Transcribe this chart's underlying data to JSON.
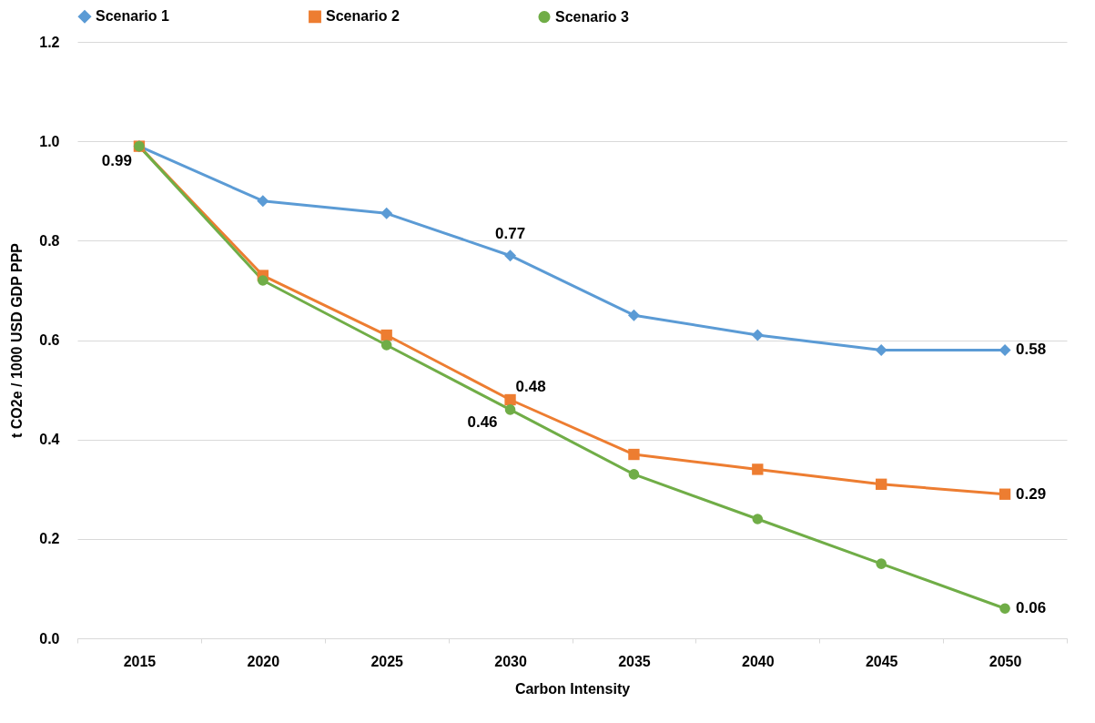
{
  "chart_data": {
    "type": "line",
    "xlabel": "Carbon Intensity",
    "ylabel": "t CO2e / 1000 USD GDP PPP",
    "categories": [
      "2015",
      "2020",
      "2025",
      "2030",
      "2035",
      "2040",
      "2045",
      "2050"
    ],
    "series": [
      {
        "name": "Scenario 1",
        "color": "#5b9bd5",
        "marker": "diamond",
        "values": [
          0.99,
          0.88,
          0.855,
          0.77,
          0.65,
          0.61,
          0.58,
          0.58
        ],
        "value_labels": [
          "0.99",
          null,
          null,
          "0.77",
          null,
          null,
          null,
          "0.58"
        ]
      },
      {
        "name": "Scenario 2",
        "color": "#ed7d31",
        "marker": "square",
        "values": [
          0.99,
          0.73,
          0.61,
          0.48,
          0.37,
          0.34,
          0.31,
          0.29
        ],
        "value_labels": [
          null,
          null,
          null,
          "0.48",
          null,
          null,
          null,
          "0.29"
        ]
      },
      {
        "name": "Scenario 3",
        "color": "#70ad47",
        "marker": "circle",
        "values": [
          0.99,
          0.72,
          0.59,
          0.46,
          0.33,
          0.24,
          0.15,
          0.06
        ],
        "value_labels": [
          null,
          null,
          null,
          "0.46",
          null,
          null,
          null,
          "0.06"
        ]
      }
    ],
    "ylim": [
      0,
      1.2
    ],
    "yticks": [
      {
        "value": 0,
        "label": "0.0"
      },
      0.2,
      0.4,
      0.6,
      0.8,
      {
        "value": 1,
        "label": "1.0"
      },
      1.2
    ],
    "grid": "y",
    "legend": "top",
    "line_style": "solid"
  }
}
